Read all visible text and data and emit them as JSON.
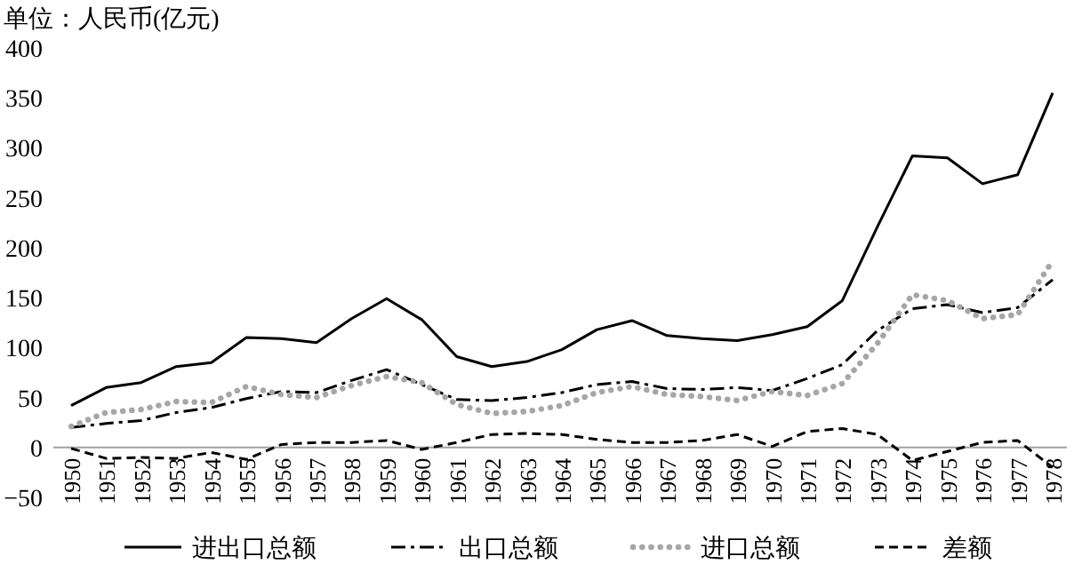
{
  "chart_data": {
    "type": "line",
    "ylabel": "单位：人民币(亿元)",
    "categories": [
      "1950",
      "1951",
      "1952",
      "1953",
      "1954",
      "1955",
      "1956",
      "1957",
      "1958",
      "1959",
      "1960",
      "1961",
      "1962",
      "1963",
      "1964",
      "1965",
      "1966",
      "1967",
      "1968",
      "1969",
      "1970",
      "1971",
      "1972",
      "1973",
      "1974",
      "1975",
      "1976",
      "1977",
      "1978"
    ],
    "series": [
      {
        "name": "进出口总额",
        "color": "#000000",
        "line_style": "solid",
        "values": [
          42,
          60,
          65,
          81,
          85,
          110,
          109,
          105,
          129,
          149,
          128,
          91,
          81,
          86,
          98,
          118,
          127,
          112,
          109,
          107,
          113,
          121,
          147,
          221,
          292,
          290,
          264,
          273,
          355
        ]
      },
      {
        "name": "出口总额",
        "color": "#000000",
        "line_style": "dashdot",
        "values": [
          20,
          24,
          27,
          35,
          40,
          49,
          56,
          55,
          67,
          78,
          63,
          48,
          47,
          50,
          55,
          63,
          66,
          59,
          58,
          60,
          57,
          69,
          83,
          117,
          139,
          143,
          135,
          140,
          168
        ]
      },
      {
        "name": "进口总额",
        "color": "#a6a6a6",
        "line_style": "dotted",
        "values": [
          21,
          35,
          38,
          46,
          45,
          61,
          53,
          50,
          62,
          71,
          65,
          43,
          34,
          36,
          42,
          55,
          61,
          53,
          51,
          47,
          56,
          52,
          64,
          104,
          153,
          147,
          129,
          133,
          187
        ]
      },
      {
        "name": "差额",
        "color": "#000000",
        "line_style": "dashed",
        "values": [
          -1,
          -11,
          -10,
          -11,
          -5,
          -12,
          3,
          5,
          5,
          7,
          -2,
          5,
          13,
          14,
          13,
          8,
          5,
          5,
          7,
          13,
          1,
          16,
          19,
          13,
          -13,
          -4,
          5,
          7,
          -20
        ]
      }
    ],
    "ylim": [
      -50,
      400
    ],
    "yticks": [
      -50,
      0,
      50,
      100,
      150,
      200,
      250,
      300,
      350,
      400
    ],
    "grid": false,
    "legend": "bottom",
    "marker": "none"
  }
}
